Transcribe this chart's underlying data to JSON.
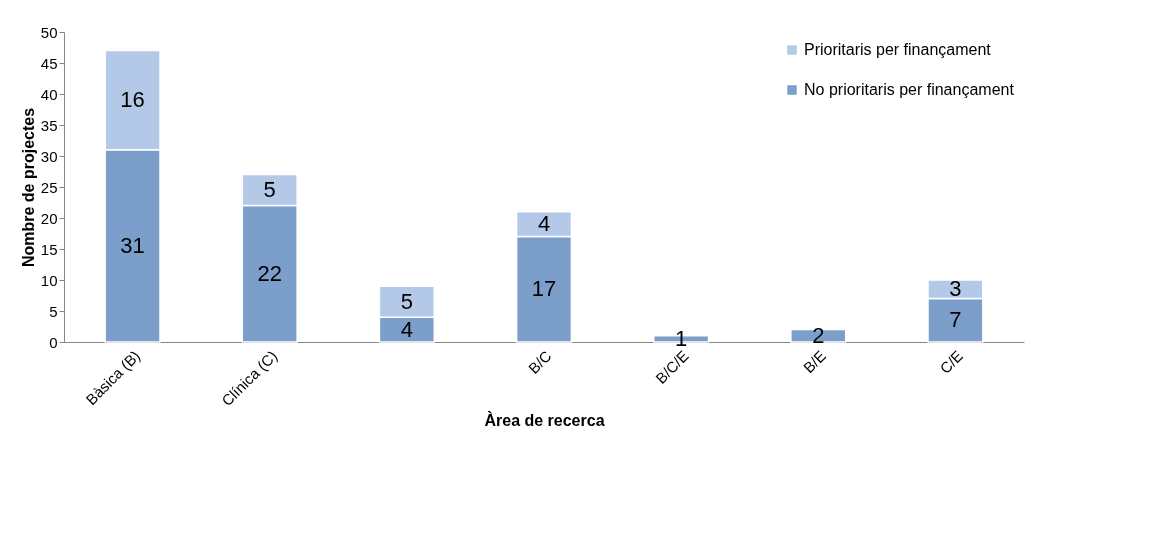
{
  "chart_data": {
    "type": "bar",
    "stacked": true,
    "xlabel": "Àrea de recerca",
    "ylabel": "Nombre de projectes",
    "categories": [
      "Bàsica (B)",
      "Clínica (C)",
      null,
      "B/C",
      "B/C/E",
      "B/E",
      "C/E"
    ],
    "series": [
      {
        "name": "No prioritaris per finançament",
        "color": "#7b9fca",
        "values": [
          31,
          22,
          4,
          17,
          1,
          2,
          7
        ]
      },
      {
        "name": "Prioritaris per finançament",
        "color": "#b4c9e8",
        "values": [
          16,
          5,
          5,
          4,
          null,
          null,
          3
        ]
      }
    ],
    "ylim": [
      0,
      50
    ],
    "yticks": [
      0,
      5,
      10,
      15,
      20,
      25,
      30,
      35,
      40,
      45,
      50
    ],
    "data_labels": true,
    "grid": false,
    "legend": "top right"
  }
}
